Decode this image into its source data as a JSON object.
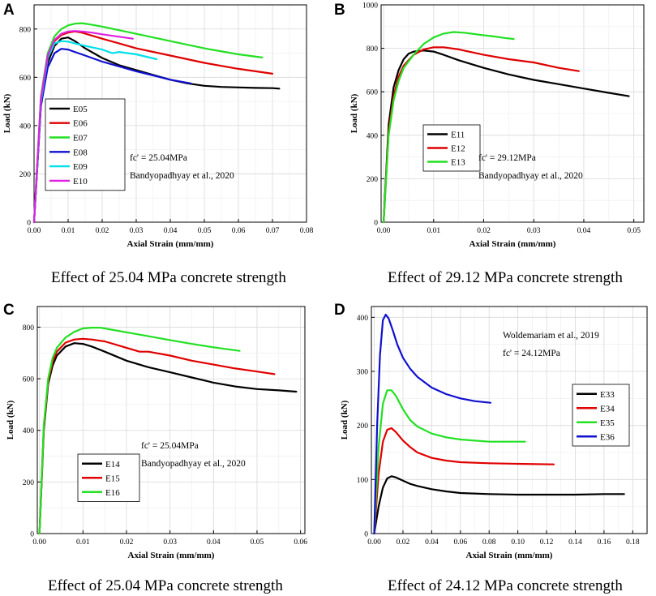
{
  "chart_data": [
    {
      "type": "line",
      "panel": "A",
      "caption": "Effect of 25.04 MPa concrete strength",
      "xlabel": "Axial Strain (mm/mm)",
      "ylabel": "Load (kN)",
      "xlim": [
        0,
        0.08
      ],
      "ylim": [
        0,
        900
      ],
      "xticks": [
        "0.00",
        "0.01",
        "0.02",
        "0.03",
        "0.04",
        "0.05",
        "0.06",
        "0.07",
        "0.08"
      ],
      "yticks": [
        "0",
        "200",
        "400",
        "600",
        "800"
      ],
      "legend_position": "bottom-left",
      "annotations": [
        "fc' = 25.04MPa",
        "Bandyopadhyay et al., 2020"
      ],
      "series": [
        {
          "name": "E05",
          "color": "#000000",
          "x": [
            0,
            0.002,
            0.004,
            0.006,
            0.008,
            0.01,
            0.012,
            0.015,
            0.02,
            0.025,
            0.03,
            0.035,
            0.04,
            0.045,
            0.05,
            0.055,
            0.06,
            0.065,
            0.07,
            0.072
          ],
          "y": [
            0,
            480,
            660,
            730,
            760,
            765,
            750,
            720,
            680,
            650,
            630,
            610,
            590,
            575,
            565,
            560,
            558,
            556,
            555,
            553
          ]
        },
        {
          "name": "E06",
          "color": "#e00000",
          "x": [
            0,
            0.002,
            0.004,
            0.006,
            0.008,
            0.01,
            0.012,
            0.014,
            0.02,
            0.025,
            0.03,
            0.04,
            0.05,
            0.06,
            0.065,
            0.07
          ],
          "y": [
            0,
            500,
            680,
            750,
            775,
            785,
            790,
            785,
            760,
            740,
            720,
            690,
            660,
            635,
            625,
            615
          ]
        },
        {
          "name": "E07",
          "color": "#22e022",
          "x": [
            0,
            0.002,
            0.004,
            0.006,
            0.008,
            0.01,
            0.012,
            0.014,
            0.016,
            0.02,
            0.03,
            0.04,
            0.05,
            0.06,
            0.067
          ],
          "y": [
            0,
            520,
            700,
            770,
            800,
            815,
            822,
            824,
            820,
            810,
            780,
            750,
            720,
            695,
            682
          ]
        },
        {
          "name": "E08",
          "color": "#1010d0",
          "x": [
            0,
            0.002,
            0.004,
            0.006,
            0.008,
            0.01,
            0.012,
            0.015,
            0.02,
            0.025,
            0.03,
            0.035,
            0.04,
            0.046
          ],
          "y": [
            0,
            480,
            640,
            700,
            718,
            715,
            705,
            690,
            665,
            645,
            625,
            608,
            590,
            575
          ]
        },
        {
          "name": "E09",
          "color": "#00e0e8",
          "x": [
            0,
            0.002,
            0.004,
            0.006,
            0.008,
            0.01,
            0.012,
            0.015,
            0.02,
            0.023,
            0.025,
            0.03,
            0.036
          ],
          "y": [
            0,
            500,
            680,
            740,
            750,
            748,
            740,
            730,
            715,
            700,
            705,
            695,
            675
          ]
        },
        {
          "name": "E10",
          "color": "#e020e0",
          "x": [
            0,
            0.002,
            0.004,
            0.006,
            0.008,
            0.01,
            0.012,
            0.014,
            0.017,
            0.02,
            0.025,
            0.029
          ],
          "y": [
            0,
            510,
            690,
            755,
            780,
            790,
            792,
            790,
            785,
            778,
            768,
            760
          ]
        }
      ]
    },
    {
      "type": "line",
      "panel": "B",
      "caption": "Effect of 29.12 MPa concrete strength",
      "xlabel": "Axial Strain (mm/mm)",
      "ylabel": "Load (kN)",
      "xlim": [
        -0.0005,
        0.052
      ],
      "ylim": [
        0,
        1000
      ],
      "xticks": [
        "0.00",
        "0.01",
        "0.02",
        "0.03",
        "0.04",
        "0.05"
      ],
      "yticks": [
        "0",
        "200",
        "400",
        "600",
        "800",
        "1000"
      ],
      "legend_position": "bottom-left",
      "annotations": [
        "fc' = 29.12MPa",
        "Bandyopadhyay et al., 2020"
      ],
      "series": [
        {
          "name": "E11",
          "color": "#000000",
          "x": [
            0,
            0.001,
            0.002,
            0.003,
            0.004,
            0.005,
            0.006,
            0.008,
            0.01,
            0.012,
            0.015,
            0.02,
            0.025,
            0.03,
            0.035,
            0.04,
            0.045,
            0.049
          ],
          "y": [
            0,
            450,
            620,
            700,
            750,
            775,
            785,
            790,
            785,
            770,
            745,
            710,
            680,
            655,
            635,
            615,
            595,
            580
          ]
        },
        {
          "name": "E12",
          "color": "#e00000",
          "x": [
            0,
            0.001,
            0.002,
            0.003,
            0.004,
            0.006,
            0.008,
            0.01,
            0.012,
            0.015,
            0.02,
            0.025,
            0.03,
            0.035,
            0.039
          ],
          "y": [
            0,
            420,
            580,
            670,
            720,
            770,
            795,
            805,
            805,
            795,
            770,
            750,
            735,
            710,
            695
          ]
        },
        {
          "name": "E13",
          "color": "#22e022",
          "x": [
            0,
            0.001,
            0.002,
            0.003,
            0.004,
            0.006,
            0.008,
            0.01,
            0.012,
            0.014,
            0.016,
            0.018,
            0.02,
            0.022,
            0.024,
            0.026
          ],
          "y": [
            0,
            400,
            560,
            650,
            710,
            770,
            820,
            850,
            868,
            875,
            872,
            866,
            860,
            855,
            848,
            843
          ]
        }
      ]
    },
    {
      "type": "line",
      "panel": "C",
      "caption": "Effect of 25.04 MPa concrete strength",
      "xlabel": "Axial Strain (mm/mm)",
      "ylabel": "Load (kN)",
      "xlim": [
        -0.0005,
        0.061
      ],
      "ylim": [
        0,
        880
      ],
      "xticks": [
        "0.00",
        "0.01",
        "0.02",
        "0.03",
        "0.04",
        "0.05",
        "0.06"
      ],
      "yticks": [
        "0",
        "200",
        "400",
        "600",
        "800"
      ],
      "legend_position": "bottom-left",
      "annotations": [
        "fc' = 25.04MPa",
        "Bandyopadhyay et al., 2020"
      ],
      "series": [
        {
          "name": "E14",
          "color": "#000000",
          "x": [
            0,
            0.001,
            0.002,
            0.003,
            0.004,
            0.006,
            0.008,
            0.01,
            0.012,
            0.015,
            0.02,
            0.025,
            0.03,
            0.035,
            0.04,
            0.045,
            0.05,
            0.055,
            0.059
          ],
          "y": [
            0,
            400,
            580,
            650,
            690,
            725,
            738,
            735,
            725,
            705,
            670,
            645,
            625,
            605,
            585,
            570,
            560,
            555,
            550
          ]
        },
        {
          "name": "E15",
          "color": "#e00000",
          "x": [
            0,
            0.001,
            0.002,
            0.003,
            0.004,
            0.006,
            0.008,
            0.01,
            0.012,
            0.015,
            0.02,
            0.023,
            0.025,
            0.03,
            0.035,
            0.04,
            0.045,
            0.05,
            0.054
          ],
          "y": [
            0,
            410,
            590,
            665,
            705,
            740,
            752,
            755,
            752,
            745,
            720,
            705,
            705,
            690,
            670,
            655,
            640,
            628,
            618
          ]
        },
        {
          "name": "E16",
          "color": "#22e022",
          "x": [
            0,
            0.001,
            0.002,
            0.003,
            0.004,
            0.006,
            0.008,
            0.01,
            0.012,
            0.014,
            0.016,
            0.02,
            0.025,
            0.03,
            0.035,
            0.04,
            0.046
          ],
          "y": [
            0,
            420,
            600,
            680,
            720,
            760,
            782,
            795,
            798,
            798,
            792,
            780,
            765,
            750,
            735,
            722,
            708
          ]
        }
      ]
    },
    {
      "type": "line",
      "panel": "D",
      "caption": "Effect of 24.12 MPa concrete strength",
      "xlabel": "Axial Strain (mm/mm)",
      "ylabel": "Load (kN)",
      "xlim": [
        -0.002,
        0.19
      ],
      "ylim": [
        0,
        420
      ],
      "xticks": [
        "0.00",
        "0.02",
        "0.04",
        "0.06",
        "0.08",
        "0.10",
        "0.12",
        "0.14",
        "0.16",
        "0.18"
      ],
      "yticks": [
        "0",
        "100",
        "200",
        "300",
        "400"
      ],
      "legend_position": "right",
      "annotations": [
        "Woldemariam et al., 2019",
        "fc' = 24.12MPa"
      ],
      "series": [
        {
          "name": "E33",
          "color": "#000000",
          "x": [
            0,
            0.003,
            0.006,
            0.009,
            0.012,
            0.015,
            0.02,
            0.025,
            0.03,
            0.04,
            0.05,
            0.06,
            0.08,
            0.1,
            0.12,
            0.14,
            0.16,
            0.174
          ],
          "y": [
            0,
            50,
            85,
            102,
            106,
            104,
            98,
            92,
            88,
            82,
            78,
            75,
            73,
            72,
            72,
            72,
            73,
            73
          ]
        },
        {
          "name": "E34",
          "color": "#e00000",
          "x": [
            0,
            0.003,
            0.006,
            0.009,
            0.012,
            0.015,
            0.02,
            0.025,
            0.03,
            0.04,
            0.05,
            0.06,
            0.08,
            0.1,
            0.125
          ],
          "y": [
            0,
            110,
            170,
            192,
            195,
            188,
            172,
            160,
            150,
            140,
            135,
            132,
            130,
            129,
            128
          ]
        },
        {
          "name": "E35",
          "color": "#22e022",
          "x": [
            0,
            0.003,
            0.006,
            0.009,
            0.012,
            0.015,
            0.02,
            0.025,
            0.03,
            0.04,
            0.05,
            0.06,
            0.08,
            0.105
          ],
          "y": [
            0,
            160,
            240,
            265,
            265,
            255,
            230,
            210,
            198,
            185,
            178,
            174,
            170,
            170
          ]
        },
        {
          "name": "E36",
          "color": "#1010d0",
          "x": [
            0,
            0.002,
            0.004,
            0.006,
            0.008,
            0.01,
            0.013,
            0.016,
            0.02,
            0.025,
            0.03,
            0.04,
            0.05,
            0.06,
            0.07,
            0.081
          ],
          "y": [
            0,
            200,
            330,
            395,
            405,
            398,
            375,
            350,
            325,
            305,
            290,
            270,
            258,
            250,
            245,
            242
          ]
        }
      ]
    }
  ]
}
